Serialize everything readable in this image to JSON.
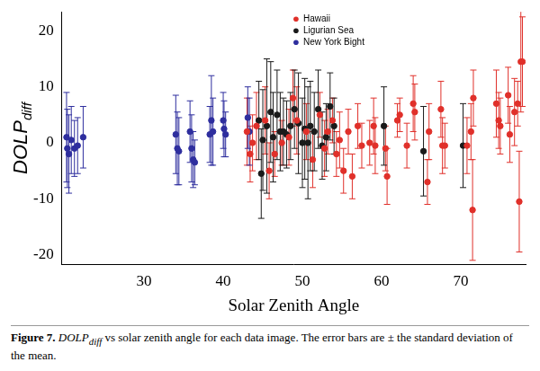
{
  "chart_data": {
    "type": "scatter",
    "y_label": {
      "text": "DOLP",
      "subscript": "diff"
    },
    "x_label": "Solar Zenith Angle",
    "xlim": [
      19.6,
      78.2
    ],
    "xticks": [
      30,
      40,
      50,
      60,
      70
    ],
    "ylim": [
      -21.8,
      23.4
    ],
    "yticks": [
      -20,
      -10,
      0,
      10,
      20
    ],
    "grid": false,
    "legend": "top",
    "marker": "circle",
    "series": [
      {
        "name": "Hawaii",
        "color": "#e0302a",
        "x": [
          43.0,
          43.4,
          43.7,
          44.2,
          45.3,
          45.8,
          46.5,
          47.4,
          48.3,
          48.8,
          49.3,
          50.5,
          51.3,
          52.2,
          52.8,
          53.2,
          53.8,
          54.3,
          54.7,
          55.2,
          55.8,
          56.3,
          57.0,
          57.5,
          58.5,
          59.0,
          59.2,
          60.5,
          60.7,
          62.0,
          62.3,
          63.2,
          64.0,
          64.2,
          65.8,
          66.0,
          67.5,
          67.7,
          68.0,
          70.8,
          71.3,
          71.5,
          71.6,
          74.5,
          74.8,
          75.0,
          76.0,
          76.2,
          76.8,
          77.2,
          77.4,
          77.6,
          77.8
        ],
        "values": [
          2,
          -2,
          0,
          3,
          4,
          -5,
          -2,
          0,
          1,
          8,
          4,
          2,
          -3,
          5,
          -1,
          2,
          4,
          -2,
          0.5,
          -5,
          2,
          -6,
          3,
          -0.5,
          0,
          3,
          -0.5,
          -1,
          -6,
          4,
          5,
          -0.5,
          7,
          5.5,
          -7,
          2,
          6,
          -0.5,
          -0.5,
          -0.5,
          2,
          -12,
          8,
          7,
          4,
          3,
          8.5,
          1.5,
          5.5,
          7,
          -10.5,
          14.5,
          14.5
        ],
        "error": [
          6,
          5,
          5,
          6,
          6,
          5,
          4,
          4,
          5,
          5,
          6,
          5,
          5,
          4,
          5,
          4,
          4,
          4,
          5,
          4,
          4,
          4,
          4,
          4,
          4,
          5,
          5,
          4,
          5,
          3,
          3,
          4,
          5,
          5,
          4,
          5,
          5,
          5,
          4,
          5,
          5,
          9,
          5,
          6,
          5,
          5,
          5,
          5,
          6,
          4,
          9,
          9,
          8
        ]
      },
      {
        "name": "Ligurian Sea",
        "color": "#1a1a1a",
        "x": [
          44.5,
          44.8,
          45.0,
          45.5,
          46.0,
          46.3,
          46.8,
          47.2,
          47.6,
          48.0,
          48.5,
          49.0,
          49.5,
          50.0,
          50.3,
          50.7,
          51.0,
          51.5,
          52.0,
          52.5,
          53.0,
          53.5,
          54.0,
          60.3,
          65.3,
          70.3
        ],
        "values": [
          4,
          -5.5,
          0.5,
          3,
          5.5,
          1,
          5,
          2,
          2,
          1.5,
          3,
          6,
          3.5,
          0,
          2.5,
          0,
          3,
          2,
          6,
          -0.5,
          1,
          6.5,
          3,
          3,
          -1.5,
          -0.5
        ],
        "error": [
          7,
          8,
          9,
          12,
          9,
          8,
          8,
          7,
          6,
          6,
          6,
          7,
          9,
          8,
          9,
          10,
          8,
          7,
          7,
          6,
          6,
          6,
          5,
          7,
          8,
          7.5
        ]
      },
      {
        "name": "New York Bight",
        "color": "#2e2e9e",
        "x": [
          20.2,
          20.3,
          20.5,
          20.8,
          21.2,
          21.6,
          22.3,
          34.0,
          34.2,
          34.4,
          35.8,
          36.0,
          36.2,
          36.4,
          38.3,
          38.5,
          38.7,
          40.0,
          40.1,
          40.3,
          43.1,
          43.3
        ],
        "values": [
          1,
          -1,
          -2,
          0.5,
          -1,
          -0.5,
          1,
          1.5,
          -1,
          -1.5,
          2,
          -1,
          -3,
          -3.5,
          1.5,
          4,
          2,
          4,
          2.5,
          1.5,
          4.5,
          2
        ],
        "error": [
          8,
          7,
          7,
          6,
          5,
          5,
          5.5,
          7,
          6.5,
          6,
          5.5,
          6,
          5,
          4,
          5,
          8,
          6,
          5,
          5,
          4,
          5.5,
          6
        ]
      }
    ],
    "caption": {
      "label": "Figure 7.",
      "symbol": "DOLP",
      "subscript": "diff",
      "text": "vs solar zenith angle for each data image.  The error bars are ± the standard deviation of the mean."
    }
  }
}
